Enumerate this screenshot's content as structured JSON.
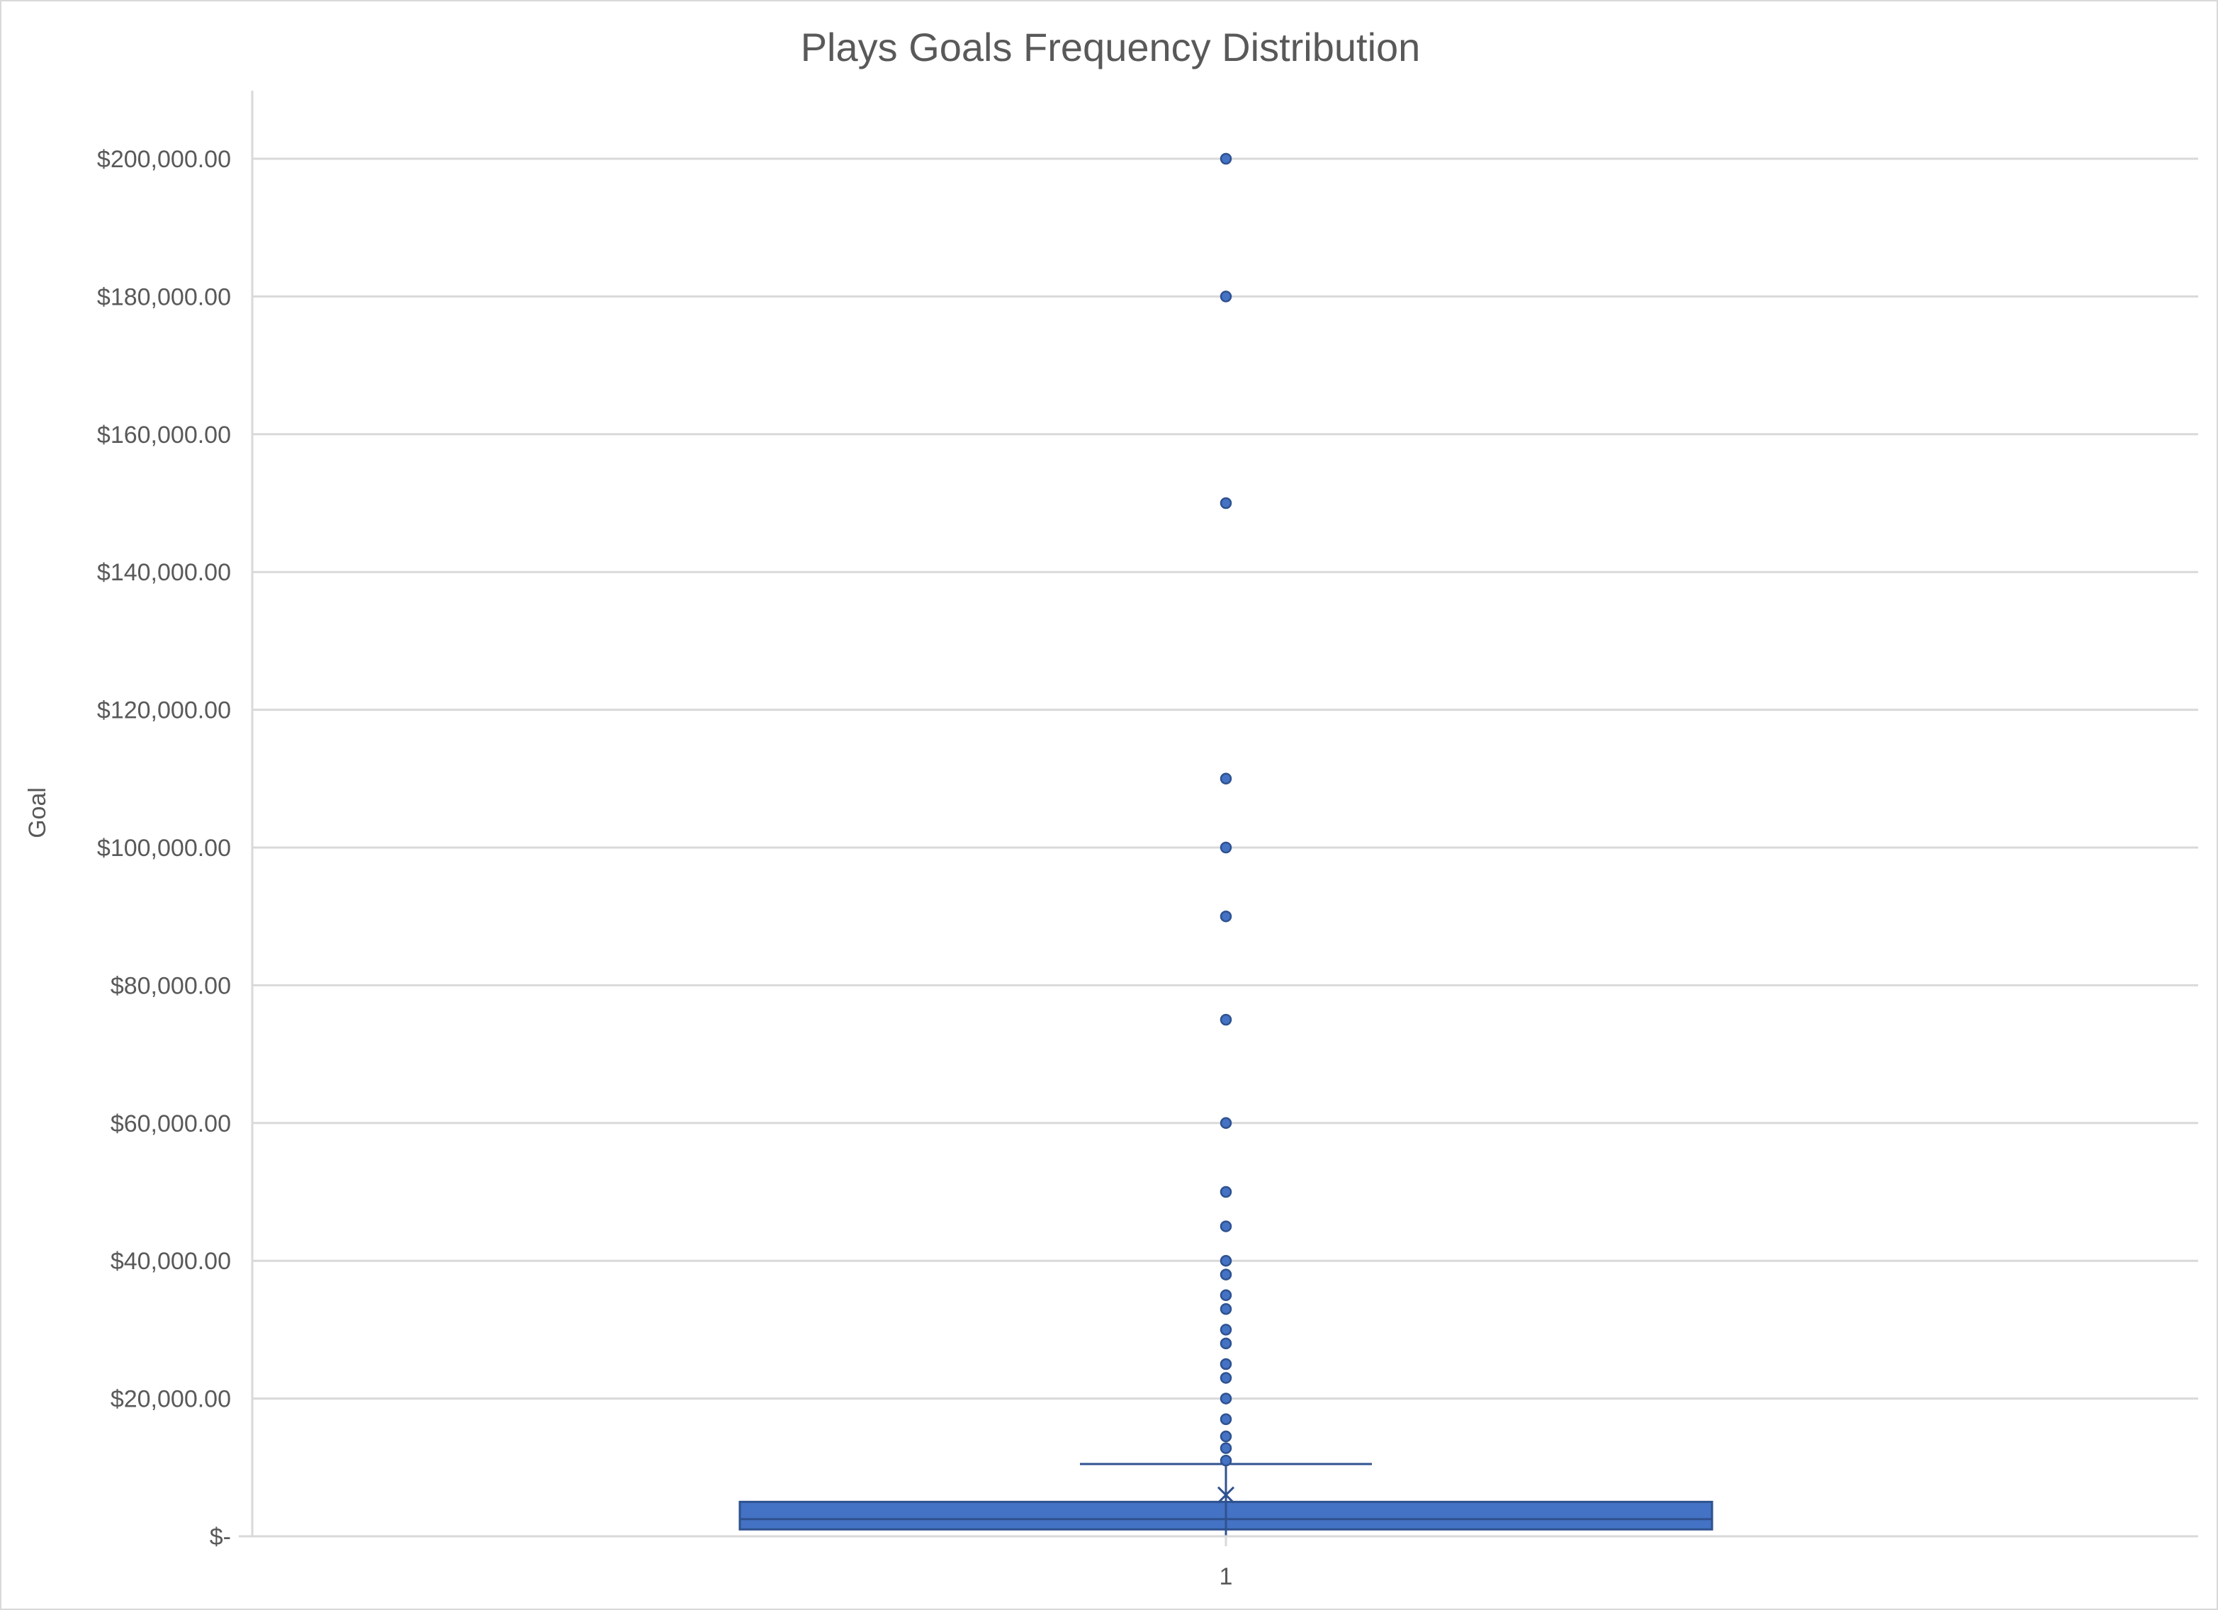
{
  "chart_data": {
    "type": "box",
    "title": "Plays Goals Frequency Distribution",
    "xlabel": "",
    "ylabel": "Goal",
    "ylim": [
      0,
      210000
    ],
    "y_ticks": [
      0,
      20000,
      40000,
      60000,
      80000,
      100000,
      120000,
      140000,
      160000,
      180000,
      200000
    ],
    "y_tick_labels": [
      "$-",
      "$20,000.00",
      "$40,000.00",
      "$60,000.00",
      "$80,000.00",
      "$100,000.00",
      "$120,000.00",
      "$140,000.00",
      "$160,000.00",
      "$180,000.00",
      "$200,000.00"
    ],
    "categories": [
      "1"
    ],
    "grid": true,
    "legend": "none",
    "box": {
      "category": "1",
      "min": 0,
      "q1": 1000,
      "median": 2500,
      "q3": 5000,
      "whisker_low": 0,
      "whisker_high": 10500,
      "mean": 6000
    },
    "outliers": [
      11000,
      12800,
      14500,
      17000,
      20000,
      23000,
      25000,
      28000,
      30000,
      33000,
      35000,
      38000,
      40000,
      45000,
      50000,
      60000,
      75000,
      90000,
      100000,
      110000,
      150000,
      180000,
      200000
    ],
    "colors": {
      "box_fill": "#4472c4",
      "box_stroke": "#2f528f",
      "grid": "#d9d9d9",
      "text": "#595959"
    }
  }
}
